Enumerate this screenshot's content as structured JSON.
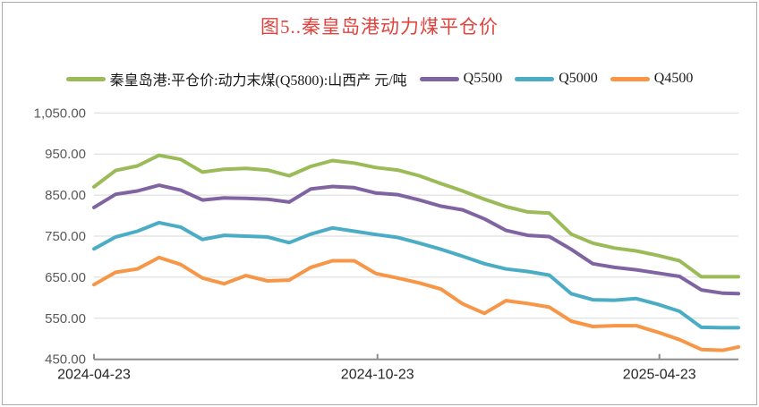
{
  "chart_data": {
    "type": "line",
    "title": "图5..秦皇岛港动力煤平仓价",
    "title_color": "#e0433e",
    "x": [
      "2024-04-23",
      "2024-05-07",
      "2024-05-21",
      "2024-06-04",
      "2024-06-18",
      "2024-07-02",
      "2024-07-16",
      "2024-07-30",
      "2024-08-13",
      "2024-08-27",
      "2024-09-10",
      "2024-09-24",
      "2024-10-08",
      "2024-10-22",
      "2024-11-05",
      "2024-11-19",
      "2024-12-03",
      "2024-12-17",
      "2024-12-31",
      "2025-01-14",
      "2025-01-28",
      "2025-02-11",
      "2025-02-25",
      "2025-03-11",
      "2025-03-25",
      "2025-04-08",
      "2025-04-22",
      "2025-05-06",
      "2025-05-20",
      "2025-06-03",
      "2025-06-13"
    ],
    "series": [
      {
        "name": "秦皇岛港:平仓价:动力末煤(Q5800):山西产 元/吨",
        "color": "#9bbb59",
        "values": [
          870,
          910,
          921,
          947,
          937,
          906,
          913,
          915,
          911,
          897,
          920,
          934,
          928,
          917,
          911,
          897,
          878,
          860,
          840,
          822,
          809,
          806,
          755,
          733,
          721,
          714,
          703,
          690,
          651,
          651,
          651
        ]
      },
      {
        "name": "Q5500",
        "color": "#8064a2",
        "values": [
          820,
          852,
          860,
          874,
          862,
          838,
          843,
          842,
          840,
          833,
          865,
          871,
          868,
          855,
          851,
          838,
          823,
          814,
          792,
          764,
          752,
          749,
          718,
          683,
          674,
          668,
          660,
          652,
          619,
          611,
          610
        ]
      },
      {
        "name": "Q5000",
        "color": "#4bacc6",
        "values": [
          719,
          748,
          762,
          783,
          772,
          742,
          752,
          750,
          748,
          734,
          755,
          770,
          762,
          754,
          747,
          733,
          718,
          701,
          683,
          670,
          664,
          655,
          610,
          595,
          594,
          598,
          584,
          567,
          528,
          527,
          527
        ]
      },
      {
        "name": "Q4500",
        "color": "#f79646",
        "values": [
          632,
          662,
          670,
          698,
          681,
          648,
          634,
          654,
          641,
          643,
          674,
          690,
          690,
          659,
          648,
          636,
          621,
          585,
          562,
          593,
          586,
          577,
          543,
          530,
          532,
          532,
          516,
          498,
          474,
          472,
          480
        ]
      }
    ],
    "ylim": [
      450,
      1050
    ],
    "ytick_values": [
      450,
      550,
      650,
      750,
      850,
      950,
      1050
    ],
    "ytick_labels": [
      "450.00",
      "550.00",
      "650.00",
      "750.00",
      "850.00",
      "950.00",
      "1,050.00"
    ],
    "xtick_labels": [
      "2024-04-23",
      "2024-10-23",
      "2025-04-23"
    ],
    "grid": true,
    "legend_position": "top",
    "gridline_color": "#d9d9d9",
    "axis_color": "#8c8c8c"
  }
}
